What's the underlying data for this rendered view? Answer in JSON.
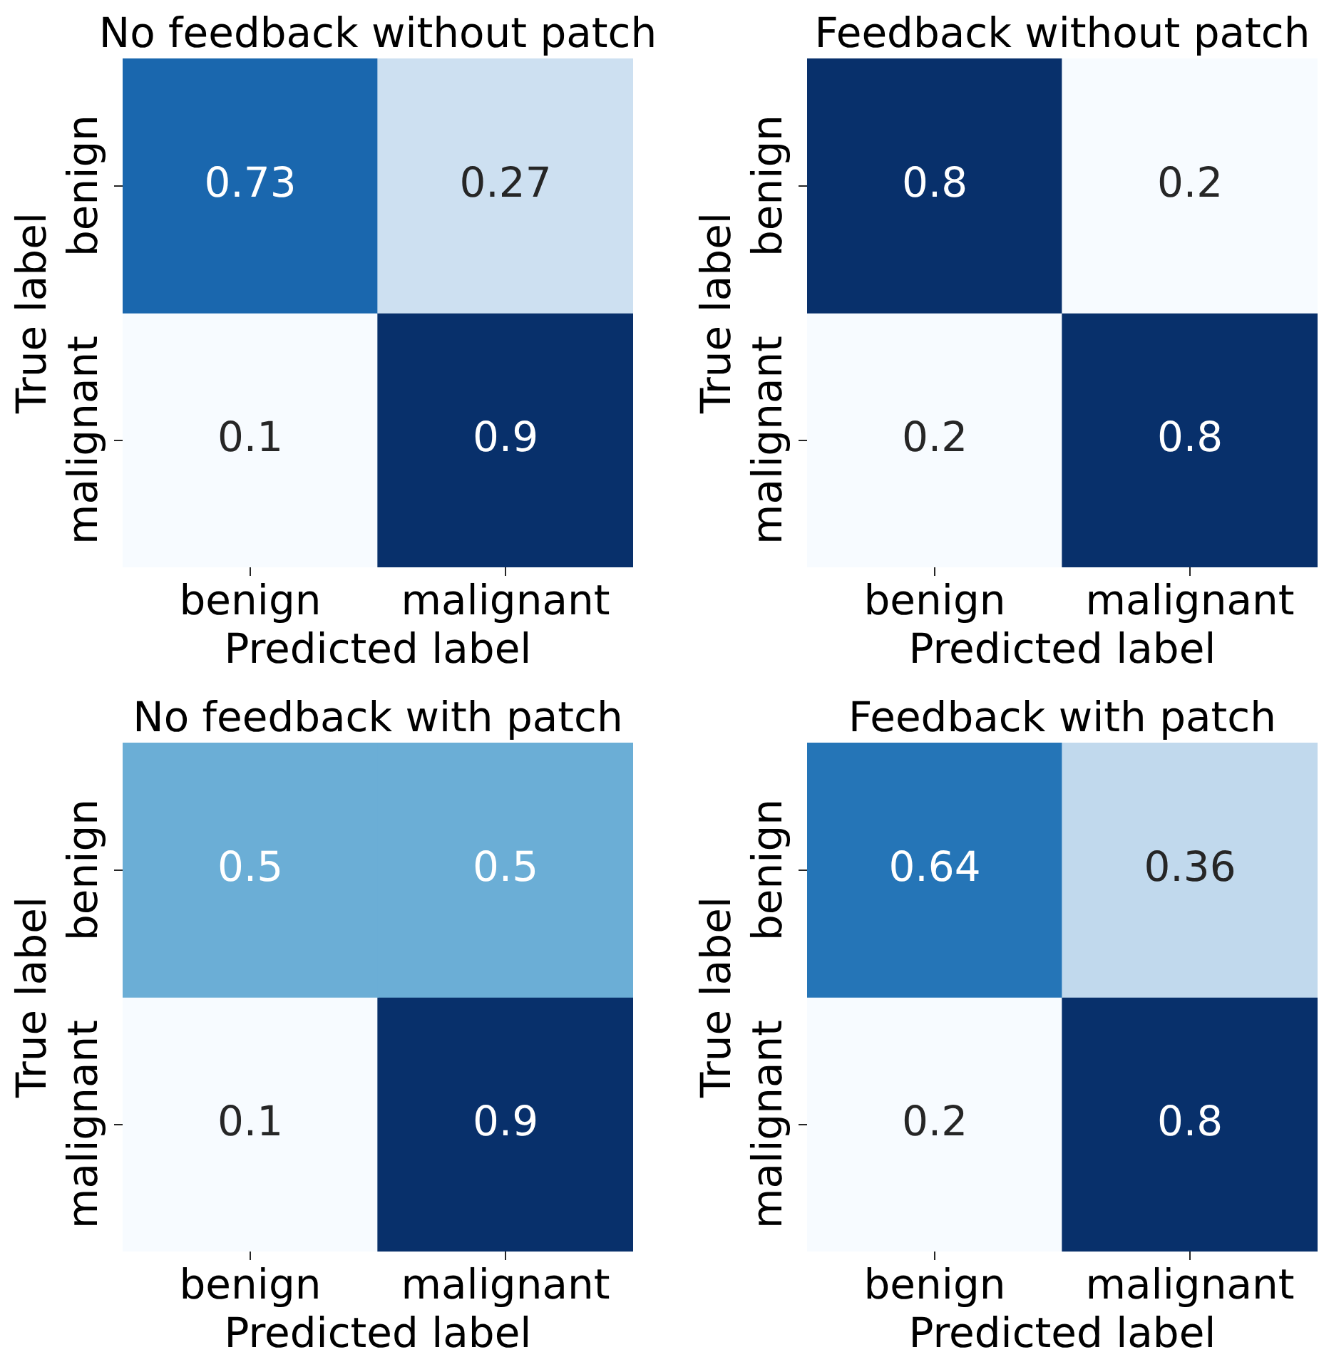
{
  "chart_data": [
    {
      "type": "heatmap",
      "title": "No feedback without patch",
      "xlabel": "Predicted label",
      "ylabel": "True label",
      "categories": [
        "benign",
        "malignant"
      ],
      "y_categories": [
        "benign",
        "malignant"
      ],
      "cells": [
        [
          0.73,
          0.27
        ],
        [
          0.1,
          0.9
        ]
      ],
      "data_labels": true
    },
    {
      "type": "heatmap",
      "title": "Feedback without patch",
      "xlabel": "Predicted label",
      "ylabel": "True label",
      "categories": [
        "benign",
        "malignant"
      ],
      "y_categories": [
        "benign",
        "malignant"
      ],
      "cells": [
        [
          0.8,
          0.2
        ],
        [
          0.2,
          0.8
        ]
      ],
      "data_labels": true
    },
    {
      "type": "heatmap",
      "title": "No feedback with patch",
      "xlabel": "Predicted label",
      "ylabel": "True label",
      "categories": [
        "benign",
        "malignant"
      ],
      "y_categories": [
        "benign",
        "malignant"
      ],
      "cells": [
        [
          0.5,
          0.5
        ],
        [
          0.1,
          0.9
        ]
      ],
      "data_labels": true
    },
    {
      "type": "heatmap",
      "title": "Feedback with patch",
      "xlabel": "Predicted label",
      "ylabel": "True label",
      "categories": [
        "benign",
        "malignant"
      ],
      "y_categories": [
        "benign",
        "malignant"
      ],
      "cells": [
        [
          0.64,
          0.36
        ],
        [
          0.2,
          0.8
        ]
      ],
      "data_labels": true
    }
  ]
}
